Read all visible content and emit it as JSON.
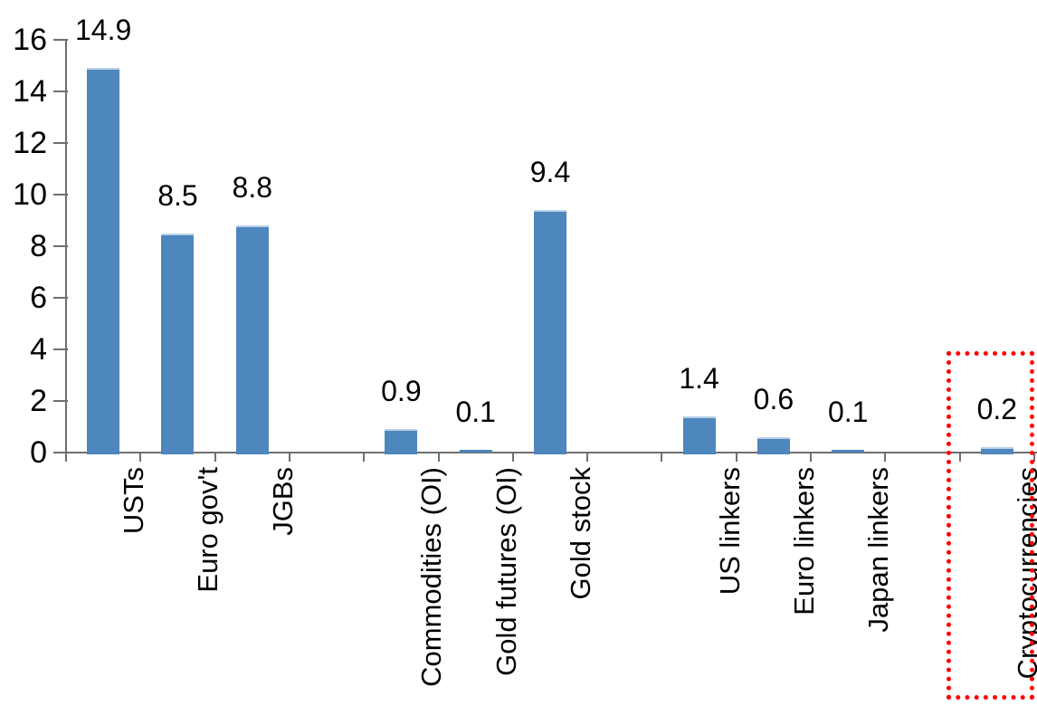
{
  "chart_data": {
    "type": "bar",
    "title": "",
    "xlabel": "",
    "ylabel": "",
    "categories": [
      "USTs",
      "Euro gov't",
      "JGBs",
      "Commodities (OI)",
      "Gold futures (OI)",
      "Gold stock",
      "US linkers",
      "Euro linkers",
      "Japan linkers",
      "Cryptocurrencies"
    ],
    "values": [
      14.9,
      8.5,
      8.8,
      0.9,
      0.1,
      9.4,
      1.4,
      0.6,
      0.1,
      0.2
    ],
    "value_labels": [
      "14.9",
      "8.5",
      "8.8",
      "0.9",
      "0.1",
      "9.4",
      "1.4",
      "0.6",
      "0.1",
      "0.2"
    ],
    "ylim": [
      0,
      16
    ],
    "yticks": [
      0,
      2,
      4,
      6,
      8,
      10,
      12,
      14,
      16
    ],
    "ytick_labels": [
      "0",
      "2",
      "4",
      "6",
      "8",
      "10",
      "12",
      "14",
      "16"
    ],
    "grid": false,
    "legend": false,
    "slot_map": [
      0,
      1,
      2,
      null,
      3,
      4,
      5,
      null,
      6,
      7,
      8,
      null,
      9
    ],
    "bar_color": "#4e86be",
    "bar_top_edge_color": "#b9d1e7",
    "axis_color": "#6f6f6f",
    "text_color": "#000000",
    "highlight": {
      "category": "Cryptocurrencies",
      "style": "red-dotted-box",
      "color": "#ff0000"
    }
  }
}
